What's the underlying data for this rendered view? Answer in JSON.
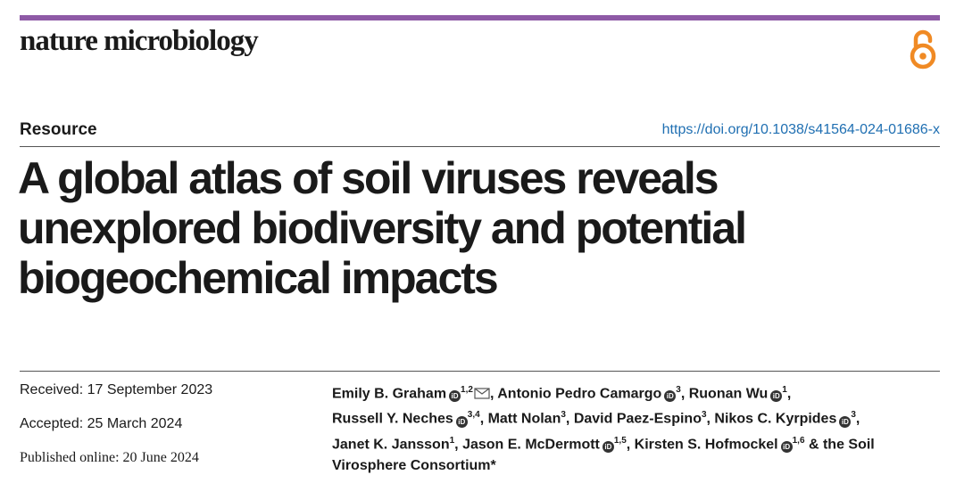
{
  "header": {
    "journal_name": "nature microbiology",
    "accent_color": "#8e5aa6",
    "open_access_color": "#f08a24",
    "open_access_icon": "open-access-lock-icon"
  },
  "article": {
    "type": "Resource",
    "doi": "https://doi.org/10.1038/s41564-024-01686-x",
    "title_lines": [
      "A global atlas of soil viruses reveals",
      "unexplored biodiversity and potential",
      "biogeochemical impacts"
    ]
  },
  "dates": {
    "received": "Received: 17 September 2023",
    "accepted": "Accepted: 25 March 2024",
    "published": "Published online: 20 June 2024"
  },
  "authors": [
    {
      "name": "Emily B. Graham",
      "orcid": true,
      "sup": "1,2",
      "corresponding": true,
      "sep": ", "
    },
    {
      "name": "Antonio Pedro Camargo",
      "orcid": true,
      "sup": "3",
      "sep": ", "
    },
    {
      "name": "Ruonan Wu",
      "orcid": true,
      "sup": "1",
      "sep": ","
    },
    {
      "name": "Russell Y. Neches",
      "orcid": true,
      "sup": "3,4",
      "sep": ", "
    },
    {
      "name": "Matt Nolan",
      "orcid": false,
      "sup": "3",
      "sep": ", "
    },
    {
      "name": "David Paez-Espino",
      "orcid": false,
      "sup": "3",
      "sep": ", "
    },
    {
      "name": "Nikos C. Kyrpides",
      "orcid": true,
      "sup": "3",
      "sep": ","
    },
    {
      "name": "Janet K. Jansson",
      "orcid": false,
      "sup": "1",
      "sep": ", "
    },
    {
      "name": "Jason E. McDermott",
      "orcid": true,
      "sup": "1,5",
      "sep": ", "
    },
    {
      "name": "Kirsten S. Hofmockel",
      "orcid": true,
      "sup": "1,6",
      "sep": " & the Soil Virosphere Consortium*"
    }
  ]
}
